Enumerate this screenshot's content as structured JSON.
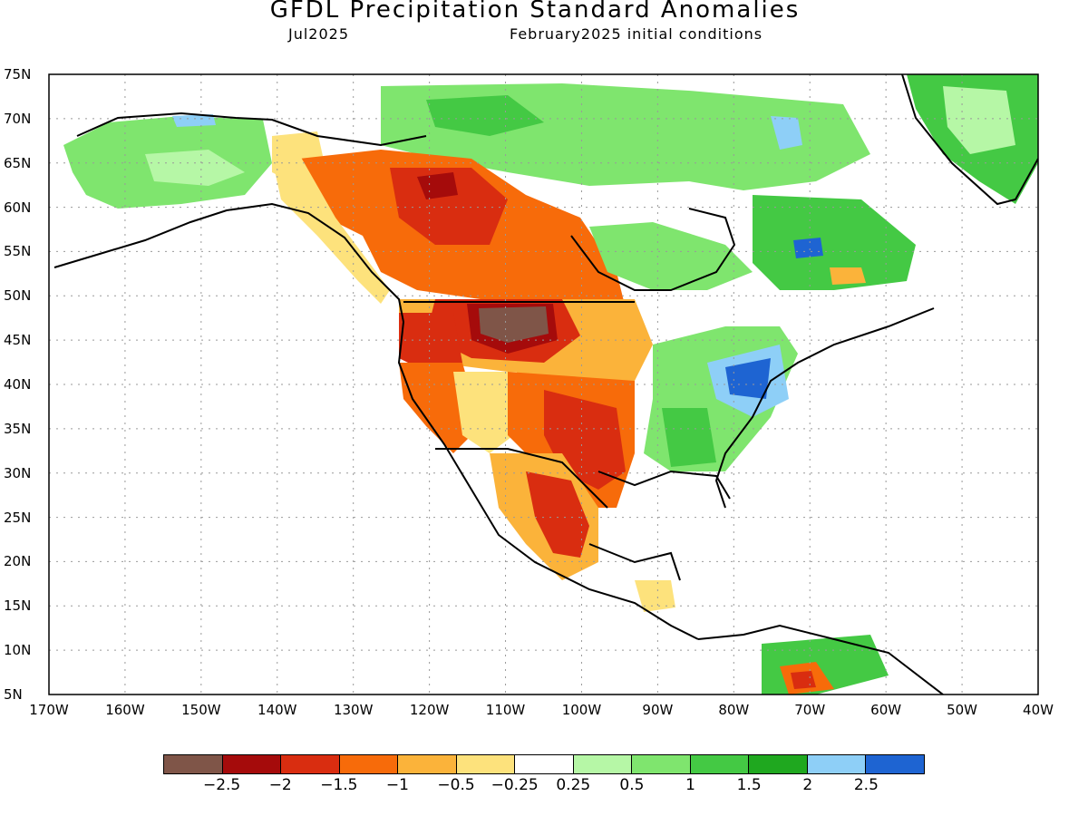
{
  "title": "GFDL Precipitation Standard Anomalies",
  "target_month": "Jul2025",
  "initial_conditions": "February2025 initial conditions",
  "lat_labels": [
    "75N",
    "70N",
    "65N",
    "60N",
    "55N",
    "50N",
    "45N",
    "40N",
    "35N",
    "30N",
    "25N",
    "20N",
    "15N",
    "10N",
    "5N"
  ],
  "lon_labels": [
    "170W",
    "160W",
    "150W",
    "140W",
    "130W",
    "120W",
    "110W",
    "100W",
    "90W",
    "80W",
    "70W",
    "60W",
    "50W",
    "40W"
  ],
  "colorbar": {
    "colors": [
      "#7f5548",
      "#a50b0b",
      "#d92d10",
      "#f76b0a",
      "#fbb33a",
      "#fde27c",
      "#ffffff",
      "#b6f7a6",
      "#7fe56e",
      "#44c944",
      "#1fa81f",
      "#8ecff7",
      "#1e64d2"
    ],
    "labels": [
      "−2.5",
      "−2",
      "−1.5",
      "−1",
      "−0.5",
      "−0.25",
      "0.25",
      "0.5",
      "1",
      "1.5",
      "2",
      "2.5"
    ]
  },
  "anomaly_regions": [
    {
      "region": "Northern Rockies / Montana",
      "level": "-2.5"
    },
    {
      "region": "Western Canada (Alberta/Saskatchewan)",
      "level": "-1.5"
    },
    {
      "region": "Southern Plains / New Mexico / Texas",
      "level": "-1.5"
    },
    {
      "region": "Northern Mexico",
      "level": "-1.5"
    },
    {
      "region": "Northern Venezuela",
      "level": "-2"
    },
    {
      "region": "Mid-Atlantic US",
      "level": "2.5"
    },
    {
      "region": "Eastern Canada / Quebec",
      "level": "1.5"
    },
    {
      "region": "Southeast US",
      "level": "1"
    },
    {
      "region": "Alaska",
      "level": "0.5"
    },
    {
      "region": "Greenland",
      "level": "1"
    }
  ]
}
